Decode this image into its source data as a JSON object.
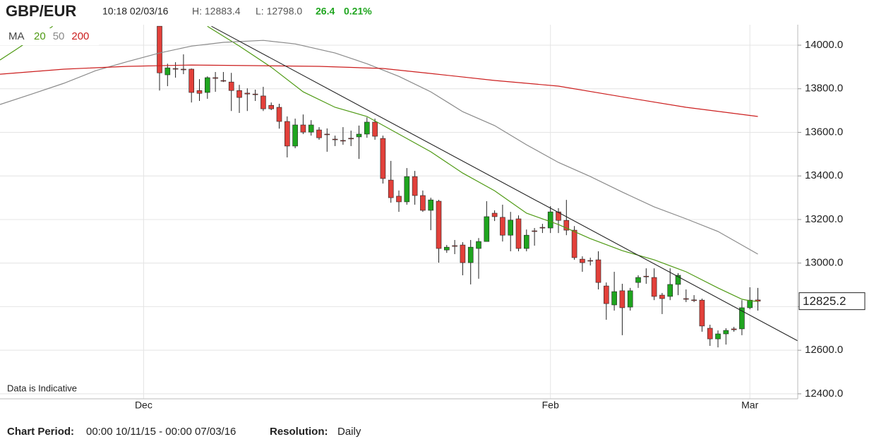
{
  "chart_data": {
    "type": "candlestick",
    "title": "GBP/EUR",
    "time": "10:18 02/03/16",
    "high_text": "H: 12883.4",
    "low_text": "L: 12798.0",
    "change": "26.4",
    "change_pct": "0.21%",
    "legend_title": "MA",
    "note": "Data is Indicative",
    "chart_period_label": "Chart Period:",
    "chart_period": "00:00 10/11/15 - 00:00 07/03/16",
    "resolution_label": "Resolution:",
    "resolution": "Daily",
    "last_price": 12825.2,
    "up_color": "#1fa51f",
    "down_color": "#e2403a",
    "grid": true,
    "ylim": [
      12377,
      14094
    ],
    "yticks": [
      {
        "value": 12400,
        "label": "12400.0"
      },
      {
        "value": 12600,
        "label": "12600.0"
      },
      {
        "value": 12800,
        "label": "12800.0"
      },
      {
        "value": 13000,
        "label": "13000.0"
      },
      {
        "value": 13200,
        "label": "13200.0"
      },
      {
        "value": 13400,
        "label": "13400.0"
      },
      {
        "value": 13600,
        "label": "13600.0"
      },
      {
        "value": 13800,
        "label": "13800.0"
      },
      {
        "value": 14000,
        "label": "14000.0"
      }
    ],
    "categories": [
      null,
      null,
      null,
      null,
      null,
      null,
      null,
      null,
      null,
      null,
      null,
      null,
      null,
      null,
      null,
      null,
      null,
      null,
      "Dec",
      null,
      null,
      null,
      null,
      null,
      null,
      null,
      null,
      null,
      null,
      null,
      null,
      null,
      null,
      null,
      null,
      null,
      null,
      null,
      null,
      null,
      null,
      null,
      null,
      null,
      null,
      null,
      null,
      null,
      null,
      null,
      null,
      null,
      null,
      null,
      null,
      null,
      null,
      null,
      null,
      null,
      null,
      null,
      null,
      null,
      null,
      null,
      null,
      null,
      null,
      "Feb",
      null,
      null,
      null,
      null,
      null,
      null,
      null,
      null,
      null,
      null,
      null,
      null,
      null,
      null,
      null,
      null,
      null,
      null,
      null,
      null,
      null,
      null,
      null,
      null,
      "Mar",
      null,
      null,
      null,
      null,
      null
    ],
    "open": [
      null,
      null,
      null,
      null,
      null,
      null,
      null,
      null,
      null,
      null,
      null,
      null,
      null,
      null,
      null,
      null,
      null,
      null,
      null,
      null,
      14087,
      13864,
      13893,
      13890,
      13890,
      13792,
      13783,
      13851,
      13838,
      13831,
      13792,
      13780,
      13776,
      13767,
      13724,
      13715,
      13650,
      13537,
      13634,
      13601,
      13611,
      13592,
      13569,
      13563,
      13573,
      13579,
      13592,
      13647,
      13572,
      13381,
      13307,
      13281,
      13397,
      13310,
      13242,
      13284,
      13060,
      13080,
      13083,
      13002,
      13067,
      13099,
      13229,
      13210,
      13128,
      13203,
      13067,
      13148,
      13164,
      13161,
      13235,
      13196,
      13151,
      13018,
      13012,
      13015,
      12895,
      12808,
      12873,
      12798,
      12911,
      12940,
      12934,
      12853,
      12847,
      12902,
      12837,
      12831,
      12830,
      12701,
      12652,
      12675,
      12698,
      12698,
      12795,
      12831,
      null,
      null,
      null,
      null
    ],
    "high": [
      null,
      null,
      null,
      null,
      null,
      null,
      null,
      null,
      null,
      null,
      null,
      null,
      null,
      null,
      null,
      null,
      null,
      null,
      null,
      null,
      14087,
      13915,
      13922,
      13958,
      13893,
      13844,
      13857,
      13877,
      13877,
      13873,
      13818,
      13802,
      13796,
      13809,
      13737,
      13731,
      13673,
      13663,
      13682,
      13656,
      13624,
      13618,
      13585,
      13624,
      13608,
      13631,
      13669,
      13663,
      13585,
      13469,
      13333,
      13436,
      13423,
      13333,
      13300,
      13290,
      13083,
      13106,
      13096,
      13106,
      13115,
      13284,
      13242,
      13268,
      13235,
      13219,
      13154,
      13161,
      13180,
      13261,
      13252,
      13290,
      13170,
      13031,
      13025,
      13054,
      12911,
      12960,
      12905,
      12886,
      12944,
      12976,
      12976,
      12863,
      12976,
      12954,
      12879,
      12853,
      12837,
      12717,
      12691,
      12701,
      12707,
      12830,
      12889,
      12886,
      null,
      null,
      null,
      null
    ],
    "low": [
      null,
      null,
      null,
      null,
      null,
      null,
      null,
      null,
      null,
      null,
      null,
      null,
      null,
      null,
      null,
      null,
      null,
      null,
      null,
      null,
      13792,
      13812,
      13851,
      13867,
      13737,
      13744,
      13754,
      13786,
      13831,
      13698,
      13689,
      13698,
      13744,
      13698,
      13702,
      13617,
      13485,
      13527,
      13592,
      13585,
      13566,
      13511,
      13537,
      13543,
      13537,
      13478,
      13575,
      13566,
      13365,
      13277,
      13235,
      13268,
      13268,
      13235,
      13151,
      13002,
      13047,
      13041,
      12944,
      12902,
      12928,
      13099,
      13193,
      13099,
      13054,
      13054,
      13054,
      13080,
      13138,
      13138,
      13138,
      13128,
      13015,
      12960,
      12989,
      12879,
      12740,
      12782,
      12669,
      12782,
      12886,
      12905,
      12830,
      12766,
      12830,
      12853,
      12821,
      12821,
      12685,
      12620,
      12613,
      12626,
      12685,
      12669,
      12788,
      12782,
      null,
      null,
      null,
      null
    ],
    "close": [
      null,
      null,
      null,
      null,
      null,
      null,
      null,
      null,
      null,
      null,
      null,
      null,
      null,
      null,
      null,
      null,
      null,
      null,
      null,
      null,
      13873,
      13896,
      13890,
      13887,
      13783,
      13779,
      13851,
      13848,
      13835,
      13792,
      13760,
      13776,
      13773,
      13708,
      13708,
      13650,
      13537,
      13634,
      13601,
      13634,
      13575,
      13589,
      13566,
      13560,
      13570,
      13592,
      13647,
      13582,
      13388,
      13300,
      13281,
      13397,
      13310,
      13242,
      13290,
      13067,
      13073,
      13077,
      13002,
      13073,
      13099,
      13213,
      13213,
      13128,
      13197,
      13067,
      13128,
      13145,
      13161,
      13235,
      13196,
      13151,
      13025,
      13002,
      13009,
      12911,
      12814,
      12869,
      12795,
      12873,
      12934,
      12937,
      12847,
      12837,
      12902,
      12944,
      12834,
      12828,
      12711,
      12652,
      12675,
      12691,
      12694,
      12795,
      12830,
      12825,
      null,
      null,
      null,
      null
    ],
    "series": [
      {
        "name": "20",
        "color": "#4f9a14",
        "x": [
          0,
          2,
          4,
          6,
          6.6,
          7,
          26,
          30,
          34,
          38,
          42,
          46,
          50,
          54,
          58,
          62,
          66,
          70,
          74,
          78,
          82,
          86,
          90,
          93,
          94,
          95
        ],
        "values": [
          13932,
          13980,
          14029,
          14071,
          14087,
          null,
          14087,
          13996,
          13899,
          13786,
          13715,
          13673,
          13592,
          13511,
          13413,
          13332,
          13229,
          13177,
          13112,
          13057,
          13015,
          12960,
          12886,
          12834,
          12827,
          12824
        ]
      },
      {
        "name": "50",
        "color": "#8a8a8a",
        "x": [
          0,
          4,
          8,
          12,
          16,
          20,
          24,
          28,
          33,
          37,
          42,
          46,
          50,
          54,
          58,
          62,
          66,
          70,
          74,
          78,
          82,
          86,
          90,
          95
        ],
        "values": [
          13728,
          13776,
          13825,
          13883,
          13925,
          13964,
          13996,
          14013,
          14022,
          14006,
          13964,
          13915,
          13857,
          13786,
          13695,
          13631,
          13543,
          13462,
          13397,
          13326,
          13258,
          13203,
          13145,
          13041
        ]
      },
      {
        "name": "200",
        "color": "#cc1f1f",
        "x": [
          0,
          8,
          16,
          24,
          32,
          40,
          48,
          54,
          62,
          70,
          78,
          86,
          95
        ],
        "values": [
          13867,
          13890,
          13903,
          13909,
          13906,
          13903,
          13893,
          13870,
          13838,
          13812,
          13763,
          13715,
          13673
        ]
      }
    ],
    "trendline": {
      "color": "#222222",
      "x": [
        26.5,
        100
      ],
      "values": [
        14087,
        12643
      ]
    }
  }
}
